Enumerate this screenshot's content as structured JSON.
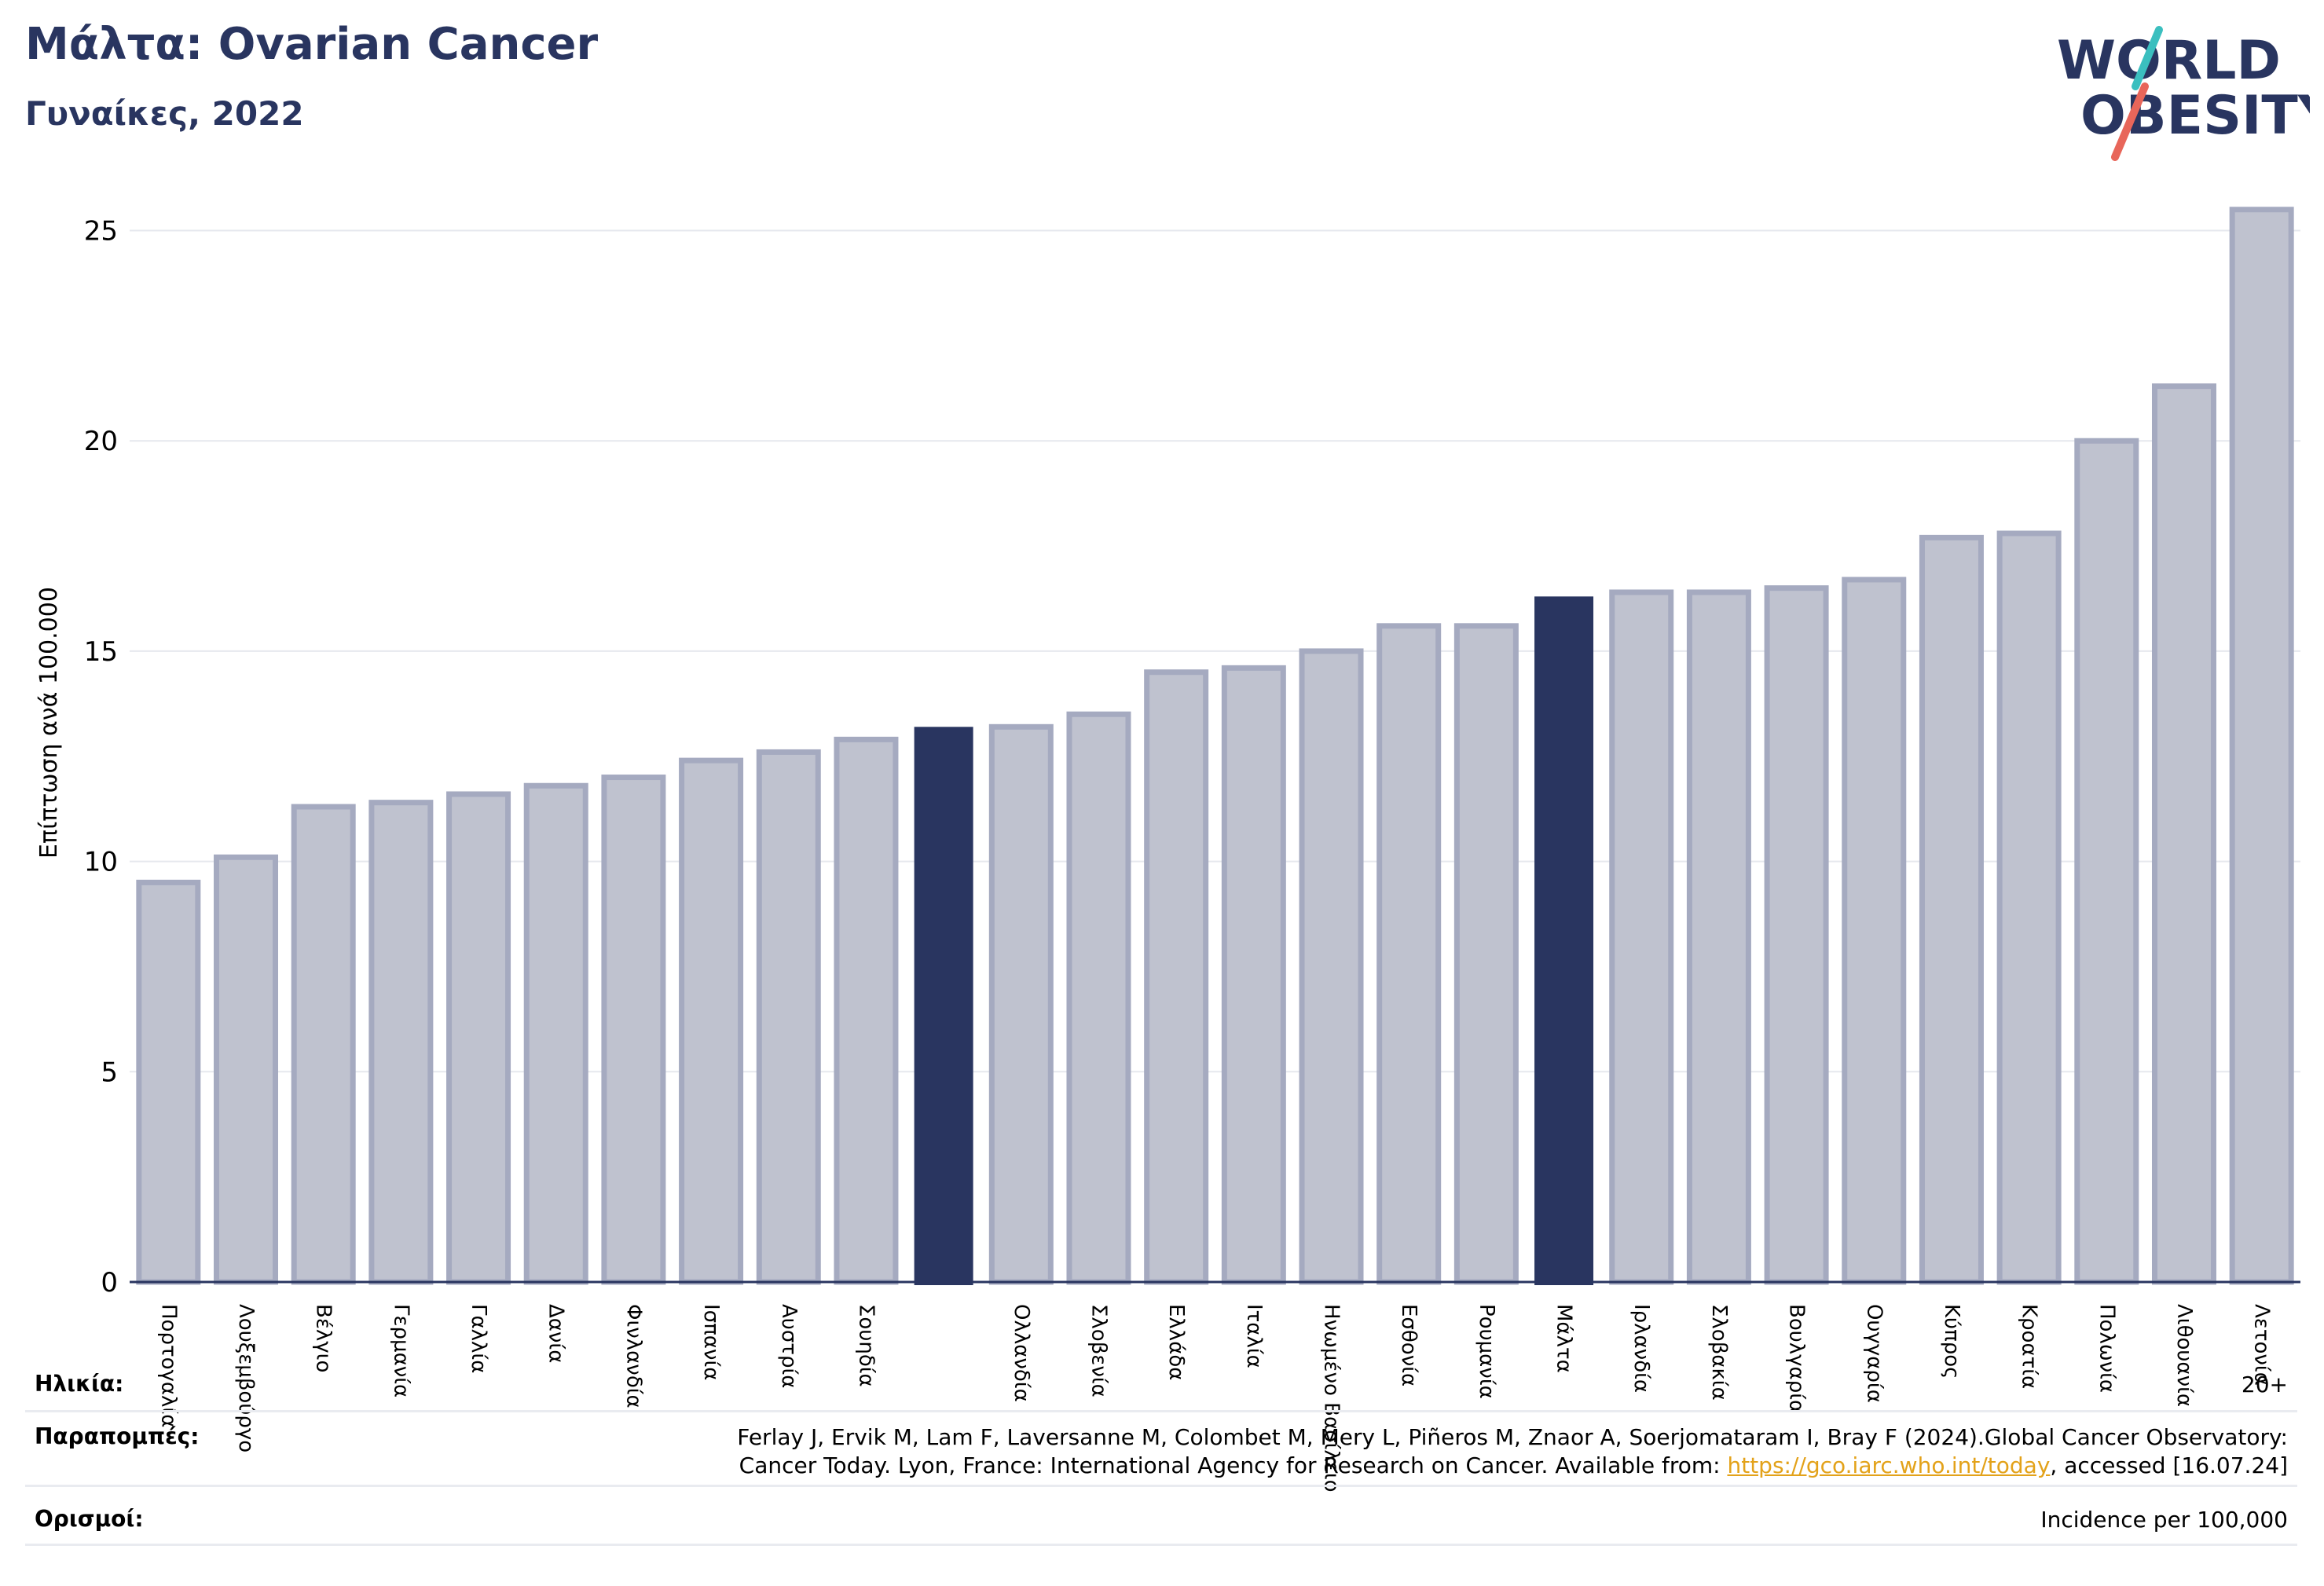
{
  "title": "Μάλτα: Ovarian Cancer",
  "subtitle": "Γυναίκες, 2022",
  "logo": {
    "line1": "WORLD",
    "line2": "OBESITY",
    "icon": "world-obesity-logo"
  },
  "colors": {
    "highlight": "#293560",
    "bar": "#bfc2cf",
    "bar_stroke": "#a5aac0",
    "grid": "#e6e8ee",
    "accent_teal": "#3bbfbf",
    "accent_red": "#e8665a"
  },
  "chart_data": {
    "type": "bar",
    "ylabel": "Επίπτωση ανά 100.000",
    "ylim": [
      0,
      26
    ],
    "yticks": [
      0,
      5,
      10,
      15,
      20,
      25
    ],
    "grid": true,
    "categories": [
      "Πορτογαλία",
      "Λουξεμβούργο",
      "Βέλγιο",
      "Γερμανία",
      "Γαλλία",
      "Δανία",
      "Φινλανδία",
      "Ισπανία",
      "Αυστρία",
      "Σουηδία",
      "",
      "Ολλανδία",
      "Σλοβενία",
      "Ελλάδα",
      "Ιταλία",
      "Ηνωμένο Βασίλειο",
      "Εσθονία",
      "Ρουμανία",
      "Μάλτα",
      "Ιρλανδία",
      "Σλοβακία",
      "Βουλγαρία",
      "Ουγγαρία",
      "Κύπρος",
      "Κροατία",
      "Πολωνία",
      "Λιθουανία",
      "Λετονία"
    ],
    "values": [
      9.5,
      10.1,
      11.3,
      11.4,
      11.6,
      11.8,
      12.0,
      12.4,
      12.6,
      12.9,
      13.2,
      13.2,
      13.5,
      14.5,
      14.6,
      15.0,
      15.6,
      15.6,
      16.3,
      16.4,
      16.4,
      16.5,
      16.7,
      17.7,
      17.8,
      20.0,
      21.3,
      25.5
    ],
    "highlighted": [
      10,
      18
    ]
  },
  "footer": {
    "age_label": "Ηλικία:",
    "age_value": "20+",
    "ref_label": "Παραπομπές:",
    "ref_line1": "Ferlay J, Ervik M, Lam F, Laversanne M, Colombet M, Mery L, Piñeros M, Znaor A, Soerjomataram I, Bray F (2024).Global Cancer Observatory:",
    "ref_line2_pre": "Cancer Today. Lyon, France: International Agency for Research on Cancer. Available from: ",
    "ref_link": "https://gco.iarc.who.int/today",
    "ref_line2_post": ", accessed [16.07.24]",
    "def_label": "Ορισμοί:",
    "def_value": "Incidence per 100,000"
  }
}
